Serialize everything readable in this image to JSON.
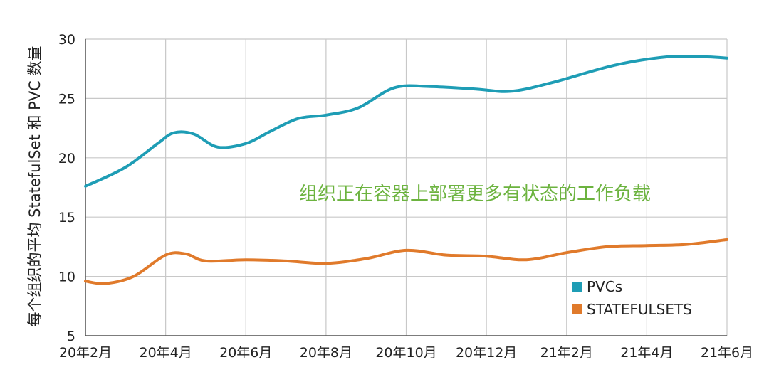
{
  "chart_data": {
    "type": "line",
    "ylabel": "每个组织的平均 StatefulSet 和 PVC 数量",
    "xlabel": "",
    "annotation": "组织正在容器上部署更多有状态的工作负载",
    "x_tick_labels": [
      "20年2月",
      "20年4月",
      "20年6月",
      "20年8月",
      "20年10月",
      "20年12月",
      "21年2月",
      "21年4月",
      "21年6月"
    ],
    "y_ticks": [
      5,
      10,
      15,
      20,
      25,
      30
    ],
    "ylim": [
      5,
      30
    ],
    "xlim": [
      0,
      16
    ],
    "grid": true,
    "legend_position": "bottom-right",
    "series": [
      {
        "name": "PVCs",
        "color": "#1e9db5",
        "points": [
          [
            0,
            17.6
          ],
          [
            1,
            19.2
          ],
          [
            1.8,
            21.2
          ],
          [
            2.2,
            22.1
          ],
          [
            2.7,
            22.0
          ],
          [
            3.3,
            20.9
          ],
          [
            4,
            21.2
          ],
          [
            4.6,
            22.2
          ],
          [
            5.3,
            23.3
          ],
          [
            6,
            23.6
          ],
          [
            6.8,
            24.2
          ],
          [
            7.7,
            25.9
          ],
          [
            8.6,
            26.0
          ],
          [
            9.7,
            25.8
          ],
          [
            10.6,
            25.6
          ],
          [
            11.6,
            26.3
          ],
          [
            13.2,
            27.8
          ],
          [
            14.5,
            28.5
          ],
          [
            15.5,
            28.5
          ],
          [
            16,
            28.4
          ]
        ]
      },
      {
        "name": "STATEFULSETS",
        "color": "#e07a2b",
        "points": [
          [
            0,
            9.6
          ],
          [
            0.5,
            9.4
          ],
          [
            1.2,
            10.0
          ],
          [
            2,
            11.8
          ],
          [
            2.5,
            11.9
          ],
          [
            3,
            11.3
          ],
          [
            4,
            11.4
          ],
          [
            5,
            11.3
          ],
          [
            6,
            11.1
          ],
          [
            7,
            11.5
          ],
          [
            8,
            12.2
          ],
          [
            9,
            11.8
          ],
          [
            10,
            11.7
          ],
          [
            11,
            11.4
          ],
          [
            12,
            12.0
          ],
          [
            13,
            12.5
          ],
          [
            14,
            12.6
          ],
          [
            15,
            12.7
          ],
          [
            16,
            13.1
          ]
        ]
      }
    ]
  }
}
